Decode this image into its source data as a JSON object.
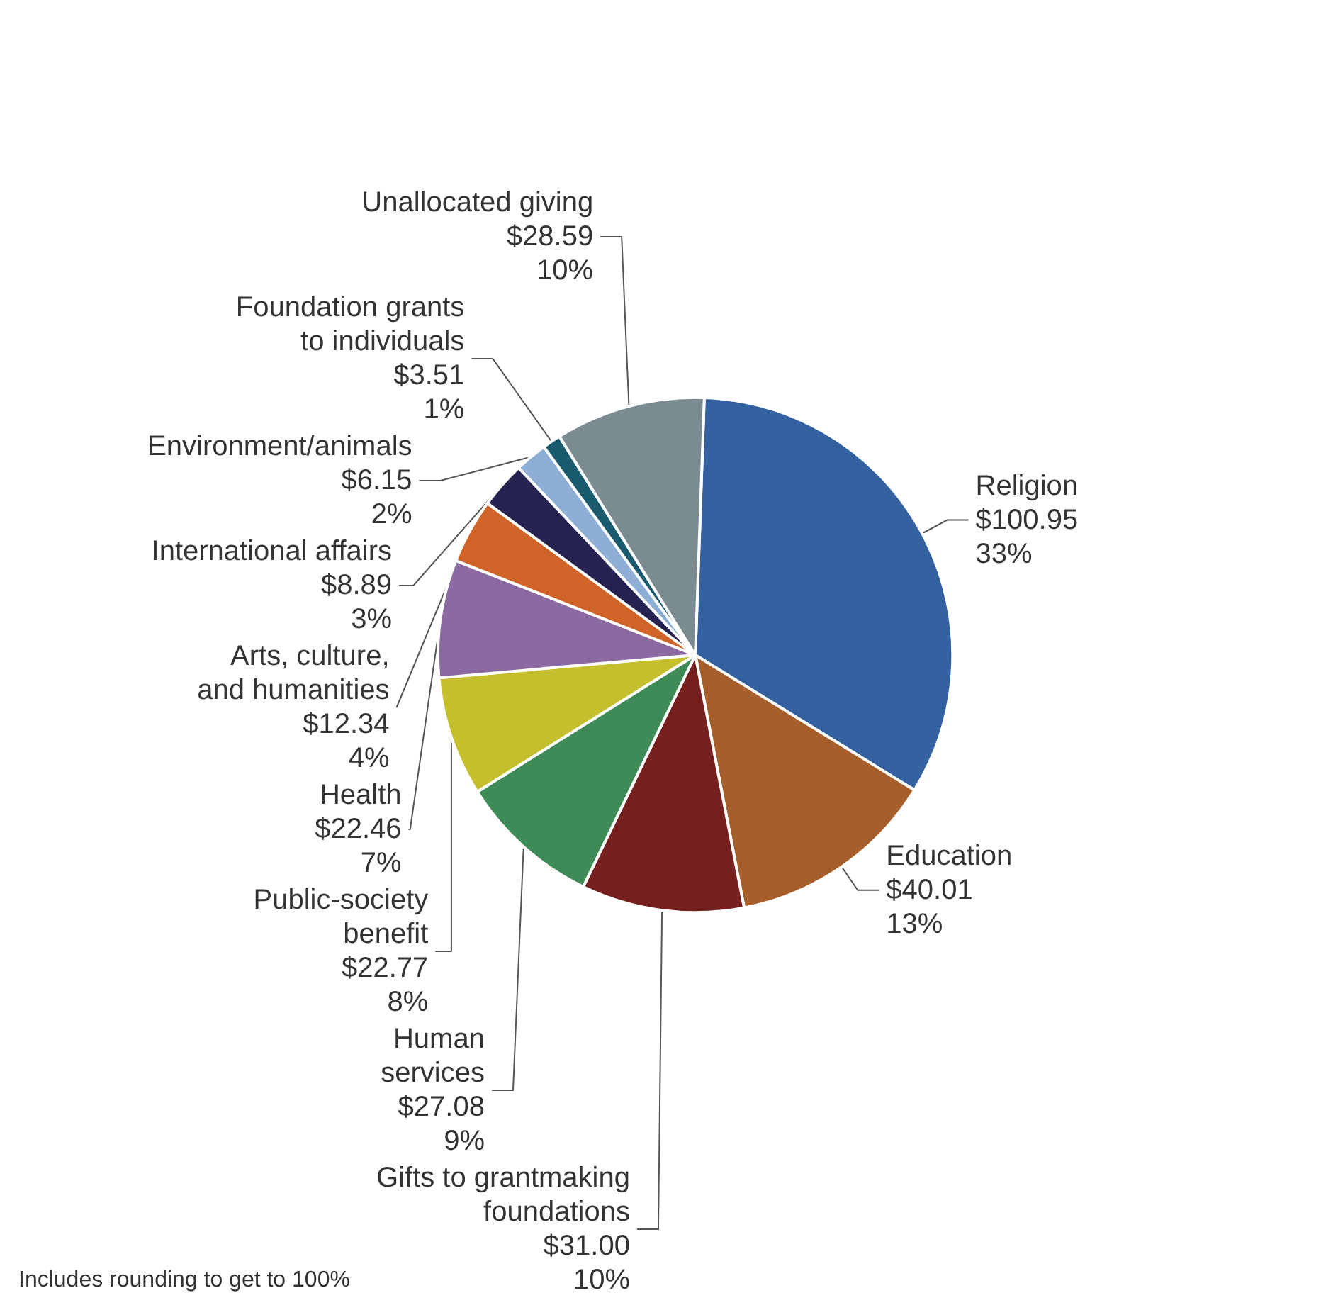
{
  "chart_data": {
    "type": "pie",
    "categories": [
      "Religion",
      "Education",
      "Gifts to grantmaking\nfoundations",
      "Human\nservices",
      "Public-society\nbenefit",
      "Health",
      "Arts, culture,\nand humanities",
      "International affairs",
      "Environment/animals",
      "Foundation grants\nto individuals",
      "Unallocated giving"
    ],
    "values": [
      100.95,
      40.01,
      31.0,
      27.08,
      22.77,
      22.46,
      12.34,
      8.89,
      6.15,
      3.51,
      28.59
    ],
    "value_labels": [
      "$100.95\n33%",
      "$40.01\n13%",
      "$31.00\n10%",
      "$27.08\n9%",
      "$22.77\n8%",
      "$22.46\n7%",
      "$12.34\n4%",
      "$8.89\n3%",
      "$6.15\n2%",
      "$3.51\n1%",
      "$28.59\n10%"
    ],
    "colors": [
      "#3461a0",
      "#a65e2a",
      "#75201f",
      "#3e8b57",
      "#c5bf2e",
      "#8a6aa0",
      "#d06428",
      "#262350",
      "#8eaed6",
      "#1a5a6e",
      "#7a8c91"
    ],
    "annotations": [
      "Includes rounding to get to 100%"
    ]
  }
}
